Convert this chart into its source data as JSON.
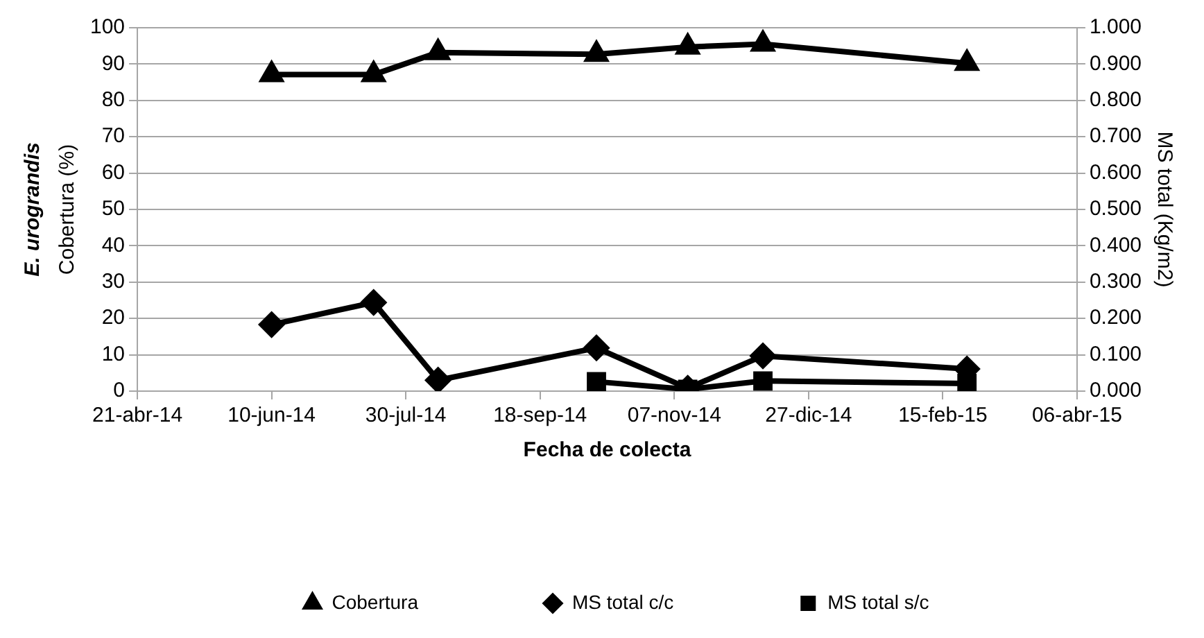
{
  "chart_data": {
    "type": "line",
    "xlabel": "Fecha de colecta",
    "ylabel": "Cobertura (%)",
    "annotations": [
      "E. urograndis"
    ],
    "y2label": "MS total (Kg/m2)",
    "xlim": [
      "2014-04-21",
      "2015-04-06"
    ],
    "xticks": [
      {
        "value": "2014-04-21",
        "label": "21-abr-14"
      },
      {
        "value": "2014-06-10",
        "label": "10-jun-14"
      },
      {
        "value": "2014-07-30",
        "label": "30-jul-14"
      },
      {
        "value": "2014-09-18",
        "label": "18-sep-14"
      },
      {
        "value": "2014-11-07",
        "label": "07-nov-14"
      },
      {
        "value": "2014-12-27",
        "label": "27-dic-14"
      },
      {
        "value": "2015-02-15",
        "label": "15-feb-15"
      },
      {
        "value": "2015-04-06",
        "label": "06-abr-15"
      }
    ],
    "ylim": [
      0,
      100
    ],
    "yticks": [
      0,
      10,
      20,
      30,
      40,
      50,
      60,
      70,
      80,
      90,
      100
    ],
    "y2lim": [
      0,
      1
    ],
    "y2ticks": [
      {
        "value": 0,
        "label": "0.000"
      },
      {
        "value": 0.1,
        "label": "0.100"
      },
      {
        "value": 0.2,
        "label": "0.200"
      },
      {
        "value": 0.3,
        "label": "0.300"
      },
      {
        "value": 0.4,
        "label": "0.400"
      },
      {
        "value": 0.5,
        "label": "0.500"
      },
      {
        "value": 0.6,
        "label": "0.600"
      },
      {
        "value": 0.7,
        "label": "0.700"
      },
      {
        "value": 0.8,
        "label": "0.800"
      },
      {
        "value": 0.9,
        "label": "0.900"
      },
      {
        "value": 1,
        "label": "1.000"
      }
    ],
    "grid": "y",
    "legend": "bottom",
    "line_style": "solid",
    "series": [
      {
        "name": "Cobertura",
        "color": "#000000",
        "marker": "triangle",
        "x": [
          "2014-06-10",
          "2014-07-18",
          "2014-08-11",
          "2014-10-09",
          "2014-11-12",
          "2014-12-10",
          "2015-02-24"
        ],
        "values": [
          87.1,
          87.1,
          93.2,
          92.7,
          94.7,
          95.5,
          90.2
        ]
      },
      {
        "name": "MS total c/c",
        "color": "#000000",
        "marker": "diamond",
        "axis": "y2",
        "x": [
          "2014-06-10",
          "2014-07-18",
          "2014-08-11",
          "2014-10-09",
          "2014-11-12",
          "2014-12-10",
          "2015-02-24"
        ],
        "values": [
          0.183,
          0.244,
          0.03,
          0.119,
          0.008,
          0.097,
          0.061
        ]
      },
      {
        "name": "MS total s/c",
        "color": "#000000",
        "marker": "square",
        "axis": "y2",
        "x": [
          "2014-10-09",
          "2014-11-12",
          "2014-12-10",
          "2015-02-24"
        ],
        "values": [
          0.026,
          0.005,
          0.028,
          0.021
        ]
      }
    ]
  }
}
